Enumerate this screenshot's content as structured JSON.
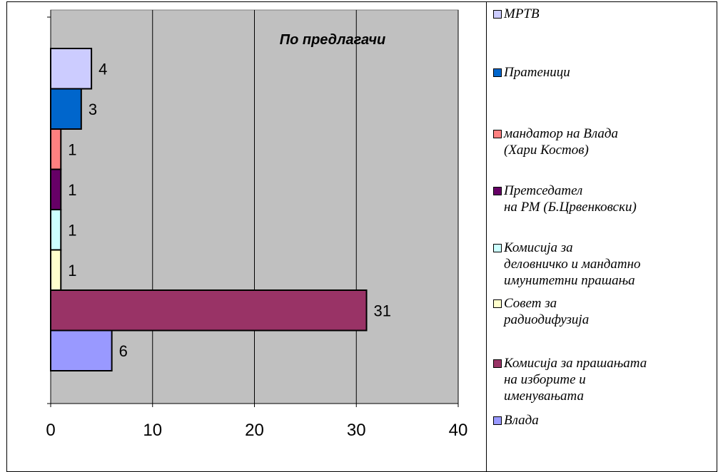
{
  "chart_data": {
    "type": "bar",
    "orientation": "horizontal",
    "title": "По предлагачи",
    "categories": [
      "МРТВ",
      "Пратеници",
      "мандатор на Влада (Хари Костов)",
      "Претседател на РМ (Б.Црвенковски)",
      "Комисија за деловничко и мандатно имунитетни прашања",
      "Совет за радиодифузија",
      "Комисија за прашањата на изборите и именувањата",
      "Влада"
    ],
    "values": [
      4,
      3,
      1,
      1,
      1,
      1,
      31,
      6
    ],
    "value_labels": [
      "4",
      "3",
      "1",
      "1",
      "1",
      "1",
      "31",
      "6"
    ],
    "colors": [
      "#CCCCFF",
      "#0066CC",
      "#FF8080",
      "#660066",
      "#CCFFFF",
      "#FFFFCC",
      "#993366",
      "#9999FF"
    ],
    "xlim": [
      0,
      40
    ],
    "xticks": [
      0,
      10,
      20,
      30,
      40
    ],
    "xtick_labels": [
      "0",
      "10",
      "20",
      "30",
      "40"
    ],
    "grid": true,
    "plot_background": "#C0C0C0",
    "legend_placement": "right"
  },
  "legend": {
    "items": [
      {
        "label": "МРТВ",
        "color": "#CCCCFF"
      },
      {
        "label": "Пратеници",
        "color": "#0066CC"
      },
      {
        "label": "мандатор на Влада\n(Хари Костов)",
        "color": "#FF8080"
      },
      {
        "label": "Претседател\nна РМ (Б.Црвенковски)",
        "color": "#660066"
      },
      {
        "label": "Комисија за\nделовничко и мандатно\nимунитетни прашања",
        "color": "#CCFFFF"
      },
      {
        "label": "Совет за\nрадиодифузија",
        "color": "#FFFFCC"
      },
      {
        "label": "Комисија за прашањата\nна изборите и\nименувањата",
        "color": "#993366"
      },
      {
        "label": "Влада",
        "color": "#9999FF"
      }
    ]
  }
}
